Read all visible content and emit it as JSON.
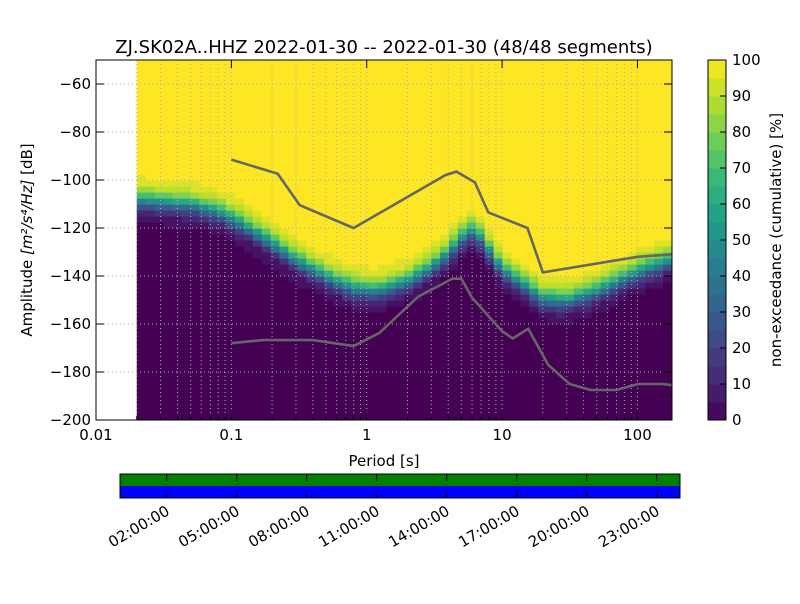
{
  "chart_data": [
    {
      "type": "heatmap",
      "title": "ZJ.SK02A..HHZ   2022-01-30 -- 2022-01-30  (48/48 segments)",
      "xlabel": "Period [s]",
      "ylabel_prefix": "Amplitude ",
      "ylabel_math": "[m²/s⁴/Hz]",
      "ylabel_suffix": " [dB]",
      "x_scale": "log",
      "xlim": [
        0.01,
        180
      ],
      "ylim": [
        -200,
        -50
      ],
      "x_ticks": [
        {
          "value": 0.01,
          "label": "0.01"
        },
        {
          "value": 0.1,
          "label": "0.1"
        },
        {
          "value": 1,
          "label": "1"
        },
        {
          "value": 10,
          "label": "10"
        },
        {
          "value": 100,
          "label": "100"
        }
      ],
      "y_ticks": [
        {
          "value": -60,
          "label": "−60"
        },
        {
          "value": -80,
          "label": "−80"
        },
        {
          "value": -100,
          "label": "−100"
        },
        {
          "value": -120,
          "label": "−120"
        },
        {
          "value": -140,
          "label": "−140"
        },
        {
          "value": -160,
          "label": "−160"
        },
        {
          "value": -180,
          "label": "−180"
        },
        {
          "value": -200,
          "label": "−200"
        }
      ],
      "grid": true,
      "data_period_min": 0.02,
      "psd_median_curve": {
        "period": [
          0.02,
          0.03,
          0.05,
          0.08,
          0.12,
          0.2,
          0.3,
          0.5,
          0.8,
          1.2,
          2,
          3,
          4,
          5,
          6,
          7,
          10,
          15,
          20,
          30,
          50,
          100,
          180
        ],
        "db": [
          -108,
          -109,
          -110,
          -113,
          -118,
          -126,
          -133,
          -140,
          -145,
          -146,
          -142,
          -136,
          -130,
          -124,
          -121,
          -124,
          -137,
          -144,
          -149,
          -150,
          -146,
          -138,
          -133
        ]
      },
      "noise_model_high": {
        "period": [
          0.1,
          0.22,
          0.32,
          0.8,
          3.8,
          4.6,
          6.3,
          7.9,
          15.4,
          20,
          100,
          180
        ],
        "db": [
          -91.5,
          -97.4,
          -110.5,
          -120,
          -98,
          -96.5,
          -101,
          -113.5,
          -120,
          -138.5,
          -132,
          -131
        ]
      },
      "noise_model_low": {
        "period": [
          0.1,
          0.17,
          0.4,
          0.8,
          1.24,
          2.4,
          4.3,
          5,
          6,
          10,
          12,
          15.6,
          21.9,
          31.6,
          45,
          70,
          101,
          154,
          180
        ],
        "db": [
          -168,
          -166.7,
          -166.7,
          -169.2,
          -163.7,
          -148.6,
          -141.1,
          -141.1,
          -149,
          -163,
          -166,
          -162,
          -177,
          -185,
          -187.5,
          -187.5,
          -185,
          -185,
          -185.5
        ]
      },
      "colormap": "viridis"
    },
    {
      "type": "colorbar",
      "label": "non-exceedance (cumulative) [%]",
      "range": [
        0,
        100
      ],
      "ticks": [
        {
          "value": 0,
          "label": "0"
        },
        {
          "value": 10,
          "label": "10"
        },
        {
          "value": 20,
          "label": "20"
        },
        {
          "value": 30,
          "label": "30"
        },
        {
          "value": 40,
          "label": "40"
        },
        {
          "value": 50,
          "label": "50"
        },
        {
          "value": 60,
          "label": "60"
        },
        {
          "value": 70,
          "label": "70"
        },
        {
          "value": 80,
          "label": "80"
        },
        {
          "value": 90,
          "label": "90"
        },
        {
          "value": 100,
          "label": "100"
        }
      ],
      "levels": 20
    },
    {
      "type": "timeline",
      "time_start_hours": 0,
      "time_end_hours": 24,
      "tick_hours": [
        2,
        5,
        8,
        11,
        14,
        17,
        20,
        23
      ],
      "tick_labels": [
        "02:00:00",
        "05:00:00",
        "08:00:00",
        "11:00:00",
        "14:00:00",
        "17:00:00",
        "20:00:00",
        "23:00:00"
      ],
      "bars": [
        {
          "name": "data-coverage",
          "color": "#008000",
          "start_hours": 0,
          "end_hours": 24
        },
        {
          "name": "psd-coverage",
          "color": "#0000ff",
          "start_hours": 0,
          "end_hours": 24
        }
      ]
    }
  ],
  "colors": {
    "axis": "#000000",
    "grid": "#b0b0b0",
    "noise_model": "#666666",
    "viridis_stops": [
      "#440154",
      "#482878",
      "#3e4989",
      "#31688e",
      "#26828e",
      "#1f9e89",
      "#35b779",
      "#6ece58",
      "#b5de2b",
      "#fde725"
    ]
  }
}
